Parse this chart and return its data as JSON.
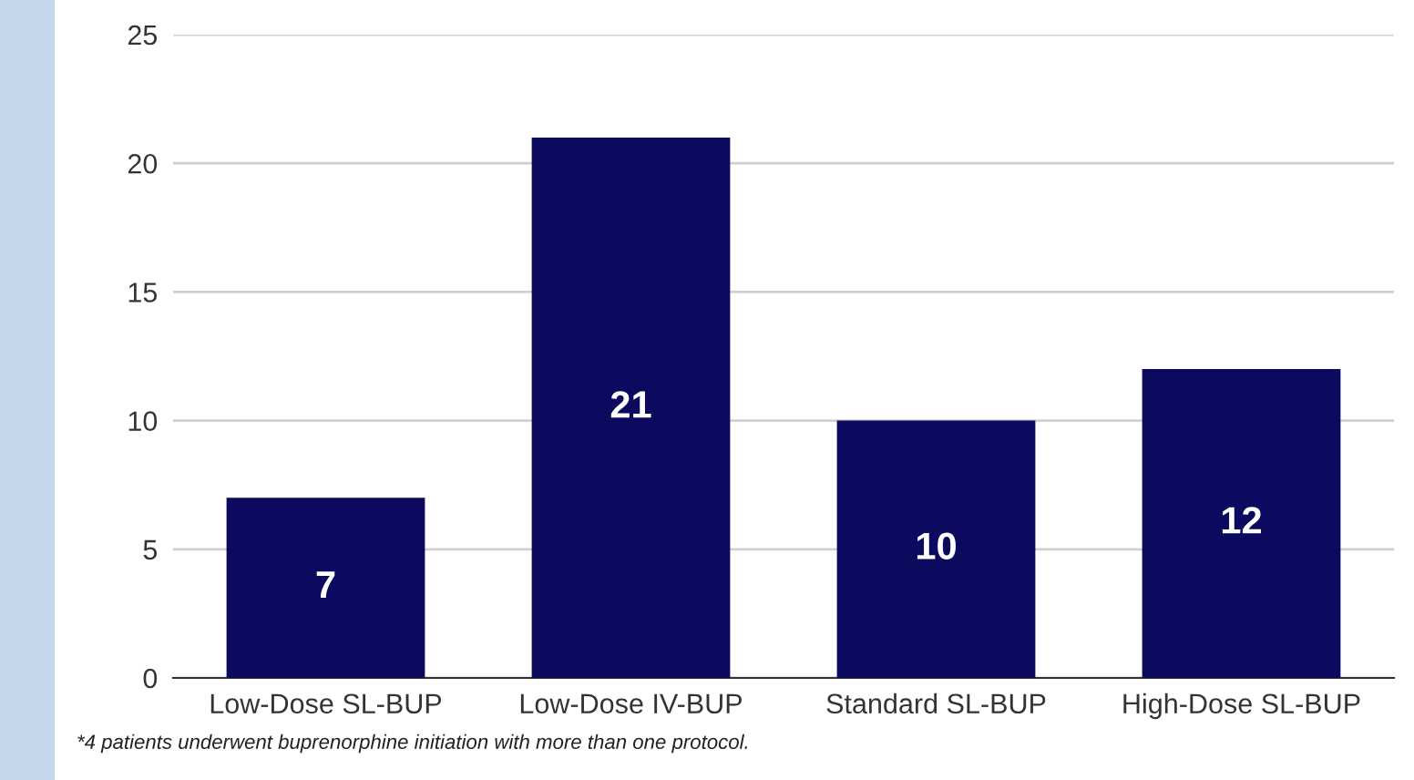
{
  "chart_data": {
    "type": "bar",
    "categories": [
      "Low-Dose SL-BUP",
      "Low-Dose IV-BUP",
      "Standard SL-BUP",
      "High-Dose SL-BUP"
    ],
    "values": [
      7,
      21,
      10,
      12
    ],
    "color": "#0b0a5e",
    "ylim": [
      0,
      25
    ],
    "yticks": [
      0,
      5,
      10,
      15,
      20,
      25
    ],
    "grid": "y",
    "data_labels": true,
    "annotations": [
      "*4 patients underwent buprenorphine initiation with more than one protocol."
    ]
  }
}
